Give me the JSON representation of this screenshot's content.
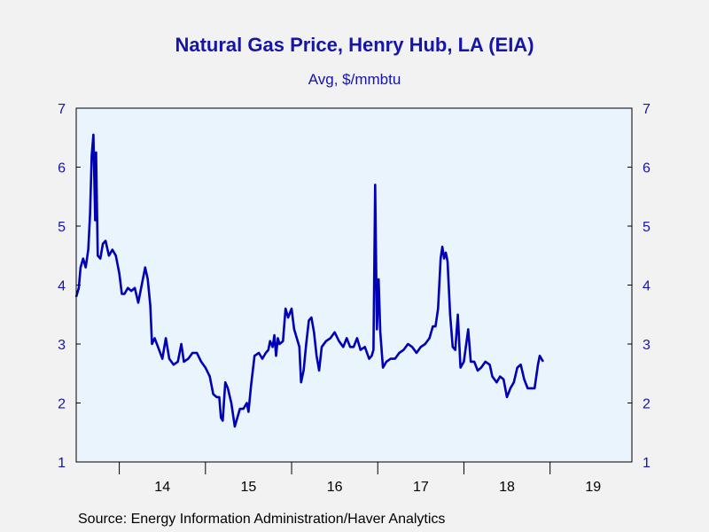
{
  "chart": {
    "title": "Natural Gas Price, Henry Hub, LA (EIA)",
    "subtitle": "Avg, $/mmbtu",
    "source": "Source:  Energy Information Administration/Haver Analytics"
  },
  "colors": {
    "background": "#f2f2f2",
    "plot_background": "#eaf4fd",
    "line": "#0000b4",
    "text": "#1515a8"
  },
  "chart_data": {
    "type": "line",
    "title": "Natural Gas Price, Henry Hub, LA (EIA)",
    "subtitle": "Avg, $/mmbtu",
    "ylim": [
      1,
      7
    ],
    "y_ticks": [
      1,
      2,
      3,
      4,
      5,
      6,
      7
    ],
    "y_axis_both_sides": true,
    "x_range": [
      2013.5,
      2019.95
    ],
    "x_tick_labels": [
      {
        "label": "14",
        "x": 2014.5
      },
      {
        "label": "15",
        "x": 2015.5
      },
      {
        "label": "16",
        "x": 2016.5
      },
      {
        "label": "17",
        "x": 2017.5
      },
      {
        "label": "18",
        "x": 2018.5
      },
      {
        "label": "19",
        "x": 2019.5
      }
    ],
    "x_year_dividers": [
      2014,
      2015,
      2016,
      2017,
      2018,
      2019
    ],
    "grid": false,
    "series": [
      {
        "points": [
          [
            2013.5,
            3.8
          ],
          [
            2013.53,
            3.95
          ],
          [
            2013.55,
            4.3
          ],
          [
            2013.58,
            4.45
          ],
          [
            2013.61,
            4.3
          ],
          [
            2013.64,
            4.6
          ],
          [
            2013.66,
            5.2
          ],
          [
            2013.68,
            6.2
          ],
          [
            2013.7,
            6.55
          ],
          [
            2013.72,
            5.1
          ],
          [
            2013.73,
            6.25
          ],
          [
            2013.75,
            4.5
          ],
          [
            2013.78,
            4.45
          ],
          [
            2013.81,
            4.7
          ],
          [
            2013.84,
            4.75
          ],
          [
            2013.88,
            4.5
          ],
          [
            2013.92,
            4.6
          ],
          [
            2013.96,
            4.5
          ],
          [
            2014.0,
            4.2
          ],
          [
            2014.03,
            3.85
          ],
          [
            2014.06,
            3.85
          ],
          [
            2014.1,
            3.95
          ],
          [
            2014.14,
            3.9
          ],
          [
            2014.18,
            3.95
          ],
          [
            2014.22,
            3.7
          ],
          [
            2014.26,
            4.0
          ],
          [
            2014.3,
            4.3
          ],
          [
            2014.33,
            4.1
          ],
          [
            2014.36,
            3.65
          ],
          [
            2014.38,
            3.0
          ],
          [
            2014.41,
            3.1
          ],
          [
            2014.45,
            2.95
          ],
          [
            2014.5,
            2.75
          ],
          [
            2014.54,
            3.1
          ],
          [
            2014.58,
            2.75
          ],
          [
            2014.63,
            2.65
          ],
          [
            2014.68,
            2.7
          ],
          [
            2014.72,
            3.0
          ],
          [
            2014.75,
            2.7
          ],
          [
            2014.8,
            2.75
          ],
          [
            2014.85,
            2.85
          ],
          [
            2014.9,
            2.85
          ],
          [
            2014.95,
            2.7
          ],
          [
            2015.0,
            2.6
          ],
          [
            2015.05,
            2.45
          ],
          [
            2015.09,
            2.15
          ],
          [
            2015.13,
            2.1
          ],
          [
            2015.16,
            2.1
          ],
          [
            2015.18,
            1.75
          ],
          [
            2015.2,
            1.7
          ],
          [
            2015.23,
            2.35
          ],
          [
            2015.26,
            2.25
          ],
          [
            2015.3,
            2.0
          ],
          [
            2015.34,
            1.6
          ],
          [
            2015.37,
            1.75
          ],
          [
            2015.4,
            1.9
          ],
          [
            2015.44,
            1.9
          ],
          [
            2015.48,
            2.0
          ],
          [
            2015.5,
            1.85
          ],
          [
            2015.53,
            2.3
          ],
          [
            2015.57,
            2.8
          ],
          [
            2015.62,
            2.85
          ],
          [
            2015.66,
            2.75
          ],
          [
            2015.7,
            2.85
          ],
          [
            2015.73,
            2.9
          ],
          [
            2015.75,
            3.05
          ],
          [
            2015.78,
            2.95
          ],
          [
            2015.8,
            3.15
          ],
          [
            2015.82,
            2.8
          ],
          [
            2015.84,
            3.1
          ],
          [
            2015.86,
            3.0
          ],
          [
            2015.9,
            3.05
          ],
          [
            2015.93,
            3.6
          ],
          [
            2015.96,
            3.45
          ],
          [
            2016.0,
            3.6
          ],
          [
            2016.03,
            3.25
          ],
          [
            2016.06,
            3.1
          ],
          [
            2016.09,
            2.95
          ],
          [
            2016.11,
            2.35
          ],
          [
            2016.14,
            2.55
          ],
          [
            2016.17,
            3.0
          ],
          [
            2016.2,
            3.4
          ],
          [
            2016.23,
            3.45
          ],
          [
            2016.26,
            3.2
          ],
          [
            2016.29,
            2.8
          ],
          [
            2016.32,
            2.55
          ],
          [
            2016.35,
            2.95
          ],
          [
            2016.4,
            3.05
          ],
          [
            2016.45,
            3.1
          ],
          [
            2016.5,
            3.2
          ],
          [
            2016.55,
            3.05
          ],
          [
            2016.6,
            2.95
          ],
          [
            2016.64,
            3.1
          ],
          [
            2016.68,
            2.95
          ],
          [
            2016.72,
            2.95
          ],
          [
            2016.76,
            3.1
          ],
          [
            2016.8,
            2.9
          ],
          [
            2016.85,
            2.95
          ],
          [
            2016.9,
            2.75
          ],
          [
            2016.93,
            2.8
          ],
          [
            2016.95,
            2.9
          ],
          [
            2016.97,
            5.7
          ],
          [
            2016.99,
            3.25
          ],
          [
            2017.01,
            4.1
          ],
          [
            2017.03,
            3.2
          ],
          [
            2017.06,
            2.6
          ],
          [
            2017.1,
            2.7
          ],
          [
            2017.15,
            2.75
          ],
          [
            2017.2,
            2.75
          ],
          [
            2017.25,
            2.85
          ],
          [
            2017.3,
            2.9
          ],
          [
            2017.35,
            3.0
          ],
          [
            2017.4,
            2.95
          ],
          [
            2017.45,
            2.85
          ],
          [
            2017.5,
            2.95
          ],
          [
            2017.55,
            3.0
          ],
          [
            2017.6,
            3.1
          ],
          [
            2017.64,
            3.3
          ],
          [
            2017.67,
            3.3
          ],
          [
            2017.7,
            3.6
          ],
          [
            2017.73,
            4.45
          ],
          [
            2017.75,
            4.65
          ],
          [
            2017.77,
            4.45
          ],
          [
            2017.79,
            4.55
          ],
          [
            2017.81,
            4.4
          ],
          [
            2017.84,
            3.5
          ],
          [
            2017.87,
            2.95
          ],
          [
            2017.9,
            2.9
          ],
          [
            2017.93,
            3.5
          ],
          [
            2017.96,
            2.6
          ],
          [
            2018.0,
            2.7
          ],
          [
            2018.05,
            3.25
          ],
          [
            2018.08,
            2.7
          ],
          [
            2018.12,
            2.7
          ],
          [
            2018.16,
            2.55
          ],
          [
            2018.2,
            2.6
          ],
          [
            2018.25,
            2.7
          ],
          [
            2018.3,
            2.65
          ],
          [
            2018.33,
            2.45
          ],
          [
            2018.38,
            2.35
          ],
          [
            2018.42,
            2.45
          ],
          [
            2018.46,
            2.4
          ],
          [
            2018.5,
            2.1
          ],
          [
            2018.54,
            2.25
          ],
          [
            2018.58,
            2.35
          ],
          [
            2018.62,
            2.6
          ],
          [
            2018.66,
            2.65
          ],
          [
            2018.7,
            2.4
          ],
          [
            2018.74,
            2.25
          ],
          [
            2018.78,
            2.25
          ],
          [
            2018.82,
            2.25
          ],
          [
            2018.86,
            2.65
          ],
          [
            2018.88,
            2.8
          ],
          [
            2018.92,
            2.7
          ]
        ]
      }
    ]
  }
}
